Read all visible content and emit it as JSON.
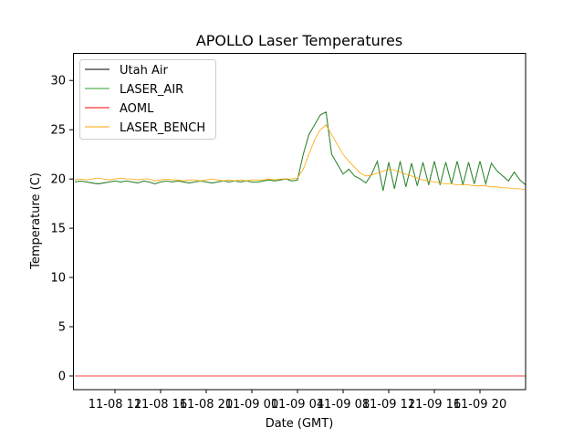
{
  "chart_data": {
    "type": "line",
    "title": "APOLLO Laser Temperatures",
    "xlabel": "Date (GMT)",
    "ylabel": "Temperature (C)",
    "x_units": "hours since 11-08 12:00",
    "xlim": [
      -3.68,
      36
    ],
    "ylim": [
      -1.39,
      32.8
    ],
    "x_start": -3.5,
    "x_step": 0.5,
    "xticks": [
      0,
      4,
      8,
      12,
      16,
      20,
      24,
      28,
      32
    ],
    "xtick_labels": [
      "11-08 12",
      "11-08 16",
      "11-08 20",
      "11-09 00",
      "11-09 04",
      "11-09 08",
      "11-09 12",
      "11-09 16",
      "11-09 20"
    ],
    "yticks": [
      0,
      5,
      10,
      15,
      20,
      25,
      30
    ],
    "ytick_labels": [
      "0",
      "5",
      "10",
      "15",
      "20",
      "25",
      "30"
    ],
    "grid": false,
    "legend_position": "top-left",
    "series": [
      {
        "name": "Utah Air",
        "color": "#000000",
        "values": [
          19.7,
          19.8,
          19.7,
          19.6,
          19.5,
          19.6,
          19.7,
          19.8,
          19.7,
          19.8,
          19.7,
          19.6,
          19.8,
          19.7,
          19.5,
          19.7,
          19.8,
          19.7,
          19.8,
          19.7,
          19.6,
          19.7,
          19.8,
          19.7,
          19.6,
          19.7,
          19.8,
          19.7,
          19.8,
          19.7,
          19.8,
          19.7,
          19.7,
          19.8,
          19.9,
          19.8,
          19.9,
          20.0,
          19.8,
          19.9,
          22.5,
          24.5,
          25.5,
          26.5,
          26.8,
          22.5,
          21.5,
          20.5,
          21.0,
          20.3,
          20.0,
          19.6,
          20.5,
          21.8,
          18.8,
          21.7,
          19.0,
          21.8,
          19.2,
          21.6,
          19.3,
          21.7,
          19.4,
          21.8,
          19.4,
          21.7,
          19.5,
          21.8,
          19.4,
          21.7,
          19.5,
          21.8,
          19.5,
          21.6,
          20.8,
          20.3,
          19.8,
          20.7,
          19.9,
          19.4
        ]
      },
      {
        "name": "LASER_AIR",
        "color": "#2ca02c",
        "values": [
          19.7,
          19.8,
          19.7,
          19.6,
          19.5,
          19.6,
          19.7,
          19.8,
          19.7,
          19.8,
          19.7,
          19.6,
          19.8,
          19.7,
          19.5,
          19.7,
          19.8,
          19.7,
          19.8,
          19.7,
          19.6,
          19.7,
          19.8,
          19.7,
          19.6,
          19.7,
          19.8,
          19.7,
          19.8,
          19.7,
          19.8,
          19.7,
          19.7,
          19.8,
          19.9,
          19.8,
          19.9,
          20.0,
          19.8,
          19.9,
          22.5,
          24.5,
          25.5,
          26.5,
          26.8,
          22.5,
          21.5,
          20.5,
          21.0,
          20.3,
          20.0,
          19.6,
          20.5,
          21.8,
          18.8,
          21.7,
          19.0,
          21.8,
          19.2,
          21.6,
          19.3,
          21.7,
          19.4,
          21.8,
          19.4,
          21.7,
          19.5,
          21.8,
          19.4,
          21.7,
          19.5,
          21.8,
          19.5,
          21.6,
          20.8,
          20.3,
          19.8,
          20.7,
          19.9,
          19.4
        ]
      },
      {
        "name": "AOML",
        "color": "#ff0000",
        "values": [
          0,
          0,
          0,
          0,
          0,
          0,
          0,
          0,
          0,
          0,
          0,
          0,
          0,
          0,
          0,
          0,
          0,
          0,
          0,
          0,
          0,
          0,
          0,
          0,
          0,
          0,
          0,
          0,
          0,
          0,
          0,
          0,
          0,
          0,
          0,
          0,
          0,
          0,
          0,
          0,
          0,
          0,
          0,
          0,
          0,
          0,
          0,
          0,
          0,
          0,
          0,
          0,
          0,
          0,
          0,
          0,
          0,
          0,
          0,
          0,
          0,
          0,
          0,
          0,
          0,
          0,
          0,
          0,
          0,
          0,
          0,
          0,
          0,
          0,
          0,
          0,
          0,
          0,
          0,
          0
        ]
      },
      {
        "name": "LASER_BENCH",
        "color": "#ffa500",
        "values": [
          19.9,
          20.0,
          19.9,
          20.0,
          20.1,
          20.0,
          19.9,
          20.0,
          20.1,
          20.0,
          20.0,
          19.9,
          20.0,
          20.0,
          19.8,
          19.9,
          20.0,
          19.9,
          19.9,
          19.8,
          19.9,
          19.9,
          19.8,
          19.9,
          20.0,
          19.9,
          19.8,
          19.9,
          19.8,
          19.9,
          19.8,
          19.9,
          19.9,
          19.9,
          20.0,
          19.9,
          20.0,
          20.0,
          20.0,
          20.1,
          21.0,
          22.5,
          24.0,
          25.0,
          25.5,
          24.5,
          23.5,
          22.5,
          21.8,
          21.2,
          20.6,
          20.3,
          20.4,
          20.6,
          20.8,
          21.0,
          20.9,
          20.7,
          20.5,
          20.3,
          20.1,
          19.9,
          19.8,
          19.7,
          19.6,
          19.5,
          19.5,
          19.4,
          19.4,
          19.4,
          19.3,
          19.3,
          19.3,
          19.2,
          19.2,
          19.1,
          19.1,
          19.0,
          19.0,
          18.9
        ]
      }
    ]
  }
}
